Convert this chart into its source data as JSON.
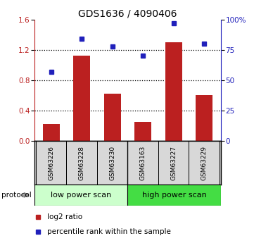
{
  "title": "GDS1636 / 4090406",
  "samples": [
    "GSM63226",
    "GSM63228",
    "GSM63230",
    "GSM63163",
    "GSM63227",
    "GSM63229"
  ],
  "log2_ratio": [
    0.22,
    1.12,
    0.62,
    0.25,
    1.3,
    0.6
  ],
  "percentile_rank": [
    57,
    84,
    78,
    70,
    97,
    80
  ],
  "bar_color": "#bb2020",
  "dot_color": "#2020bb",
  "left_ylim": [
    0,
    1.6
  ],
  "left_yticks": [
    0,
    0.4,
    0.8,
    1.2,
    1.6
  ],
  "right_ylim": [
    0,
    100
  ],
  "right_yticks": [
    0,
    25,
    50,
    75,
    100
  ],
  "right_yticklabels": [
    "0",
    "25",
    "50",
    "75",
    "100%"
  ],
  "protocol_labels": [
    "low power scan",
    "high power scan"
  ],
  "protocol_color_low": "#ccffcc",
  "protocol_color_high": "#44dd44",
  "legend_items": [
    "log2 ratio",
    "percentile rank within the sample"
  ],
  "legend_colors": [
    "#bb2020",
    "#2020bb"
  ],
  "label_color_left": "#bb2020",
  "label_color_right": "#2020bb",
  "title_fontsize": 10,
  "tick_fontsize": 7.5,
  "bar_width": 0.55
}
